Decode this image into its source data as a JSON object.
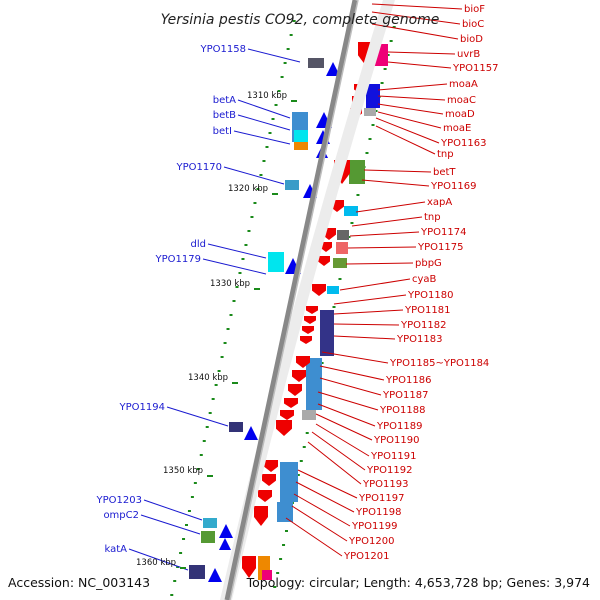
{
  "title": "Yersinia pestis CO92, complete genome",
  "footer": {
    "accession": "Accession: NC_003143",
    "stats": "Topology: circular; Length: 4,653,728 bp; Genes: 3,974"
  },
  "colors": {
    "left_label": "#1a1ad0",
    "right_label": "#cc0000",
    "backbone": "#888888",
    "tick": "#1a8a1a",
    "left_arrow": "#0000ee",
    "right_arrow": "#ee0000"
  },
  "kbp_markers": [
    "1310 kbp",
    "1320 kbp",
    "1330 kbp",
    "1340 kbp",
    "1350 kbp",
    "1360 kbp"
  ],
  "left_genes": [
    "YPO1158",
    "betA",
    "betB",
    "betI",
    "YPO1170",
    "dld",
    "YPO1179",
    "YPO1194",
    "YPO1203",
    "ompC2",
    "katA"
  ],
  "right_genes": [
    "bioF",
    "bioC",
    "bioD",
    "uvrB",
    "YPO1157",
    "moaA",
    "moaC",
    "moaD",
    "moaE",
    "YPO1163",
    "tnp",
    "betT",
    "YPO1169",
    "xapA",
    "tnp",
    "YPO1174",
    "YPO1175",
    "pbpG",
    "cyaB",
    "YPO1180",
    "YPO1181",
    "YPO1182",
    "YPO1183",
    "YPO1185~YPO1184",
    "YPO1186",
    "YPO1187",
    "YPO1188",
    "YPO1189",
    "YPO1190",
    "YPO1191",
    "YPO1192",
    "YPO1193",
    "YPO1197",
    "YPO1198",
    "YPO1199",
    "YPO1200",
    "YPO1201"
  ]
}
